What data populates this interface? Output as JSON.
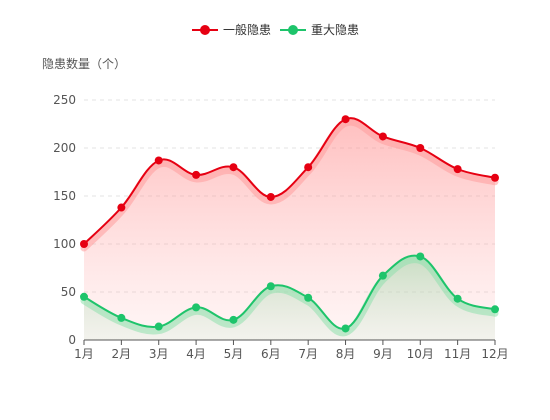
{
  "chart_data": {
    "type": "area",
    "ylabel": "隐患数量（个）",
    "categories": [
      "1月",
      "2月",
      "3月",
      "4月",
      "5月",
      "6月",
      "7月",
      "8月",
      "9月",
      "10月",
      "11月",
      "12月"
    ],
    "ylim": [
      0,
      250
    ],
    "yticks": [
      0,
      50,
      100,
      150,
      200,
      250
    ],
    "grid": true,
    "legend": "top-center",
    "series": [
      {
        "name": "一般隐患",
        "color": "#e60012",
        "values": [
          100,
          138,
          187,
          172,
          180,
          149,
          180,
          230,
          212,
          200,
          178,
          169
        ]
      },
      {
        "name": "重大隐患",
        "color": "#1ec46b",
        "values": [
          45,
          23,
          14,
          34,
          21,
          56,
          44,
          12,
          67,
          87,
          43,
          32
        ]
      }
    ]
  }
}
